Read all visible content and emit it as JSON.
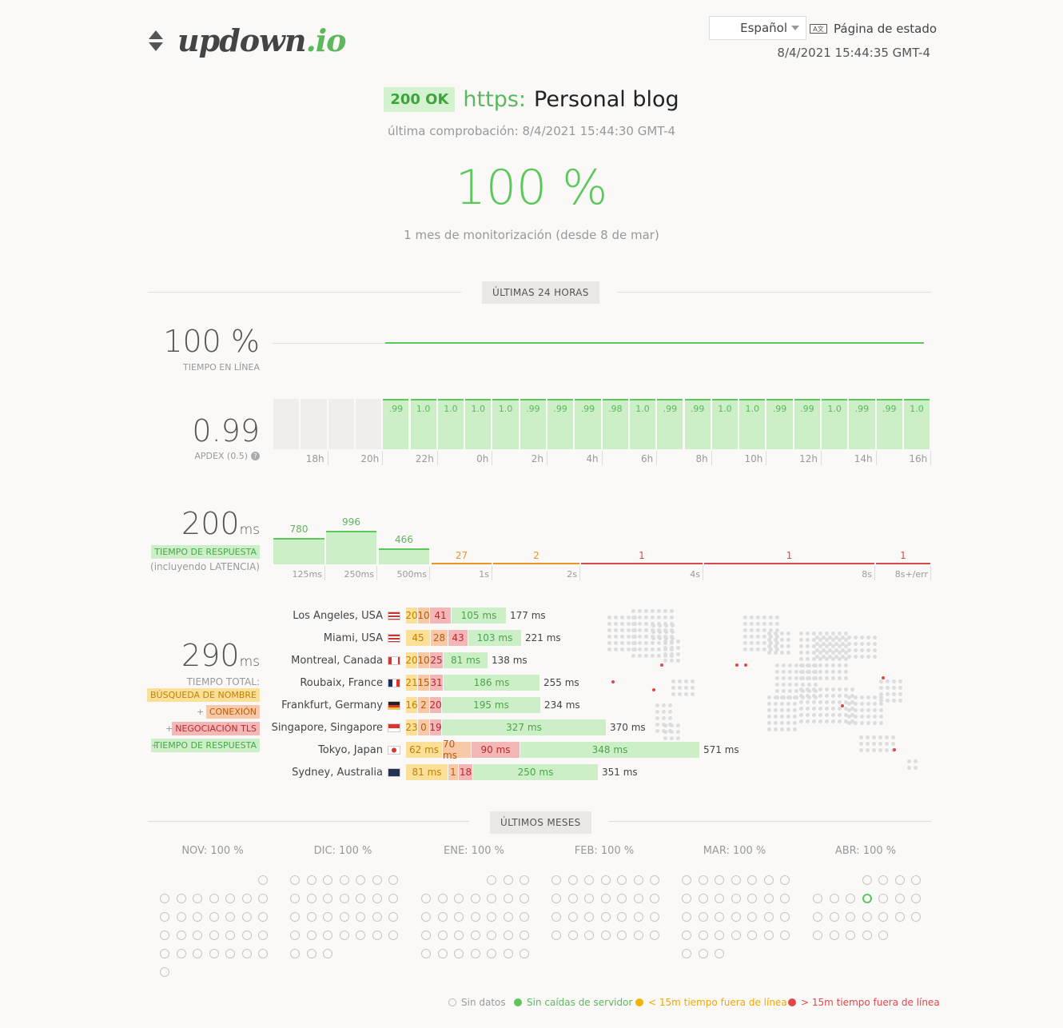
{
  "header": {
    "logo_main": "updown",
    "logo_ext": ".io",
    "language": "Español",
    "status_page": "Página de estado",
    "now": "8/4/2021 15:44:35 GMT-4"
  },
  "check": {
    "status_badge": "200 OK",
    "protocol": "https:",
    "name": "Personal blog",
    "last_check": "última comprobación: 8/4/2021 15:44:30 GMT-4",
    "uptime_big": "100 %",
    "monitoring": "1 mes de monitorización (desde 8 de mar)"
  },
  "section24": {
    "label": "ÚLTIMAS 24 HORAS"
  },
  "uptime": {
    "value": "100 %",
    "label": "TIEMPO EN LÍNEA"
  },
  "apdex": {
    "value": "0.99",
    "label": "APDEX (0.5)",
    "help_icon": "question-circle-icon",
    "bars": [
      ".99",
      "1.0",
      "1.0",
      "1.0",
      "1.0",
      ".99",
      ".99",
      ".99",
      ".98",
      "1.0",
      ".99",
      ".99",
      "1.0",
      "1.0",
      ".99",
      ".99",
      "1.0",
      ".99",
      ".99",
      "1.0"
    ],
    "ticks": [
      "18h",
      "20h",
      "22h",
      "0h",
      "2h",
      "4h",
      "6h",
      "8h",
      "10h",
      "12h",
      "14h",
      "16h"
    ]
  },
  "response": {
    "value": "200",
    "unit": "ms",
    "label": "TIEMPO DE RESPUESTA",
    "sublabel": "(incluyendo LATENCIA)",
    "buckets": [
      {
        "label": "125ms",
        "count": "780"
      },
      {
        "label": "250ms",
        "count": "996"
      },
      {
        "label": "500ms",
        "count": "466"
      },
      {
        "label": "1s",
        "count": "27"
      },
      {
        "label": "2s",
        "count": "2"
      },
      {
        "label": "4s",
        "count": "1"
      },
      {
        "label": "8s",
        "count": "1"
      },
      {
        "label": "8s+/err",
        "count": "1"
      }
    ]
  },
  "total": {
    "value": "290",
    "unit": "ms",
    "label": "TIEMPO TOTAL:",
    "dns": "BÚSQUEDA DE NOMBRE",
    "plus": "+",
    "connect": "CONEXIÓN",
    "tls": "NEGOCIACIÓN TLS",
    "resp": "TIEMPO DE RESPUESTA"
  },
  "locations": [
    {
      "city": "Los Angeles, USA",
      "flag": "us-flag",
      "dns": "20",
      "con": "10",
      "tls": "41",
      "rsp": "105 ms",
      "total": "177 ms"
    },
    {
      "city": "Miami, USA",
      "flag": "us-flag",
      "dns": "45",
      "con": "28",
      "tls": "43",
      "rsp": "103 ms",
      "total": "221 ms"
    },
    {
      "city": "Montreal, Canada",
      "flag": "ca-flag",
      "dns": "20",
      "con": "10",
      "tls": "25",
      "rsp": "81 ms",
      "total": "138 ms"
    },
    {
      "city": "Roubaix, France",
      "flag": "fr-flag",
      "dns": "21",
      "con": "15",
      "tls": "31",
      "rsp": "186 ms",
      "total": "255 ms"
    },
    {
      "city": "Frankfurt, Germany",
      "flag": "de-flag",
      "dns": "16",
      "con": "2",
      "tls": "20",
      "rsp": "195 ms",
      "total": "234 ms"
    },
    {
      "city": "Singapore, Singapore",
      "flag": "sg-flag",
      "dns": "23",
      "con": "0",
      "tls": "19",
      "rsp": "327 ms",
      "total": "370 ms"
    },
    {
      "city": "Tokyo, Japan",
      "flag": "jp-flag",
      "dns": "62 ms",
      "con": "70 ms",
      "tls": "90 ms",
      "rsp": "348 ms",
      "total": "571 ms"
    },
    {
      "city": "Sydney, Australia",
      "flag": "au-flag",
      "dns": "81 ms",
      "con": "1",
      "tls": "18",
      "rsp": "250 ms",
      "total": "351 ms"
    }
  ],
  "sectionMonths": {
    "label": "ÚLTIMOS MESES"
  },
  "months": [
    {
      "label": "NOV: 100 %"
    },
    {
      "label": "DIC: 100 %"
    },
    {
      "label": "ENE: 100 %"
    },
    {
      "label": "FEB: 100 %"
    },
    {
      "label": "MAR: 100 %"
    },
    {
      "label": "ABR: 100 %"
    }
  ],
  "legend": {
    "nodata": "Sin datos",
    "ok": "Sin caídas de servidor",
    "lt15": "< 15m tiempo fuera de línea",
    "gt15": "> 15m tiempo fuera de línea"
  },
  "colors": {
    "green": "#5cc85c",
    "orange": "#f0a800",
    "red": "#e04848",
    "grey": "#c8c6c4"
  }
}
